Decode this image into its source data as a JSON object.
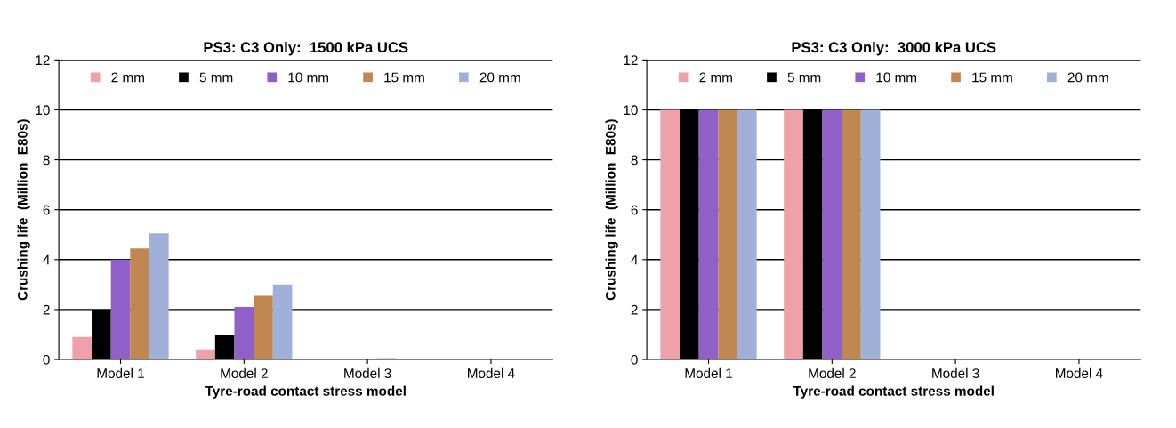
{
  "chart_data": [
    {
      "type": "bar",
      "title": "PS3: C3 Only:  1500 kPa UCS",
      "xlabel": "Tyre-road contact stress model",
      "ylabel": "Crushing life  (Million  E80s)",
      "categories": [
        "Model 1",
        "Model 2",
        "Model 3",
        "Model 4"
      ],
      "ylim": [
        0,
        12
      ],
      "yticks": [
        0,
        2,
        4,
        6,
        8,
        10,
        12
      ],
      "grid": "y",
      "legend": "top",
      "series": [
        {
          "name": "2 mm",
          "color": "#f0a0a8",
          "values": [
            0.9,
            0.4,
            0,
            0
          ]
        },
        {
          "name": "5 mm",
          "color": "#000000",
          "values": [
            2.0,
            1.0,
            0,
            0
          ]
        },
        {
          "name": "10 mm",
          "color": "#9060c8",
          "values": [
            4.0,
            2.1,
            0,
            0
          ]
        },
        {
          "name": "15 mm",
          "color": "#c08850",
          "values": [
            4.45,
            2.55,
            0.05,
            0
          ]
        },
        {
          "name": "20 mm",
          "color": "#a0b0d8",
          "values": [
            5.05,
            3.0,
            0,
            0
          ]
        }
      ]
    },
    {
      "type": "bar",
      "title": "PS3: C3 Only:  3000 kPa UCS",
      "xlabel": "Tyre-road contact stress model",
      "ylabel": "Crushing life  (Million  E80s)",
      "categories": [
        "Model 1",
        "Model 2",
        "Model 3",
        "Model 4"
      ],
      "ylim": [
        0,
        12
      ],
      "yticks": [
        0,
        2,
        4,
        6,
        8,
        10,
        12
      ],
      "grid": "y",
      "legend": "top",
      "series": [
        {
          "name": "2 mm",
          "color": "#f0a0a8",
          "values": [
            10,
            10,
            0,
            0
          ]
        },
        {
          "name": "5 mm",
          "color": "#000000",
          "values": [
            10,
            10,
            0,
            0
          ]
        },
        {
          "name": "10 mm",
          "color": "#9060c8",
          "values": [
            10,
            10,
            0,
            0
          ]
        },
        {
          "name": "15 mm",
          "color": "#c08850",
          "values": [
            10,
            10,
            0,
            0
          ]
        },
        {
          "name": "20 mm",
          "color": "#a0b0d8",
          "values": [
            10,
            10,
            0,
            0
          ]
        }
      ]
    }
  ]
}
